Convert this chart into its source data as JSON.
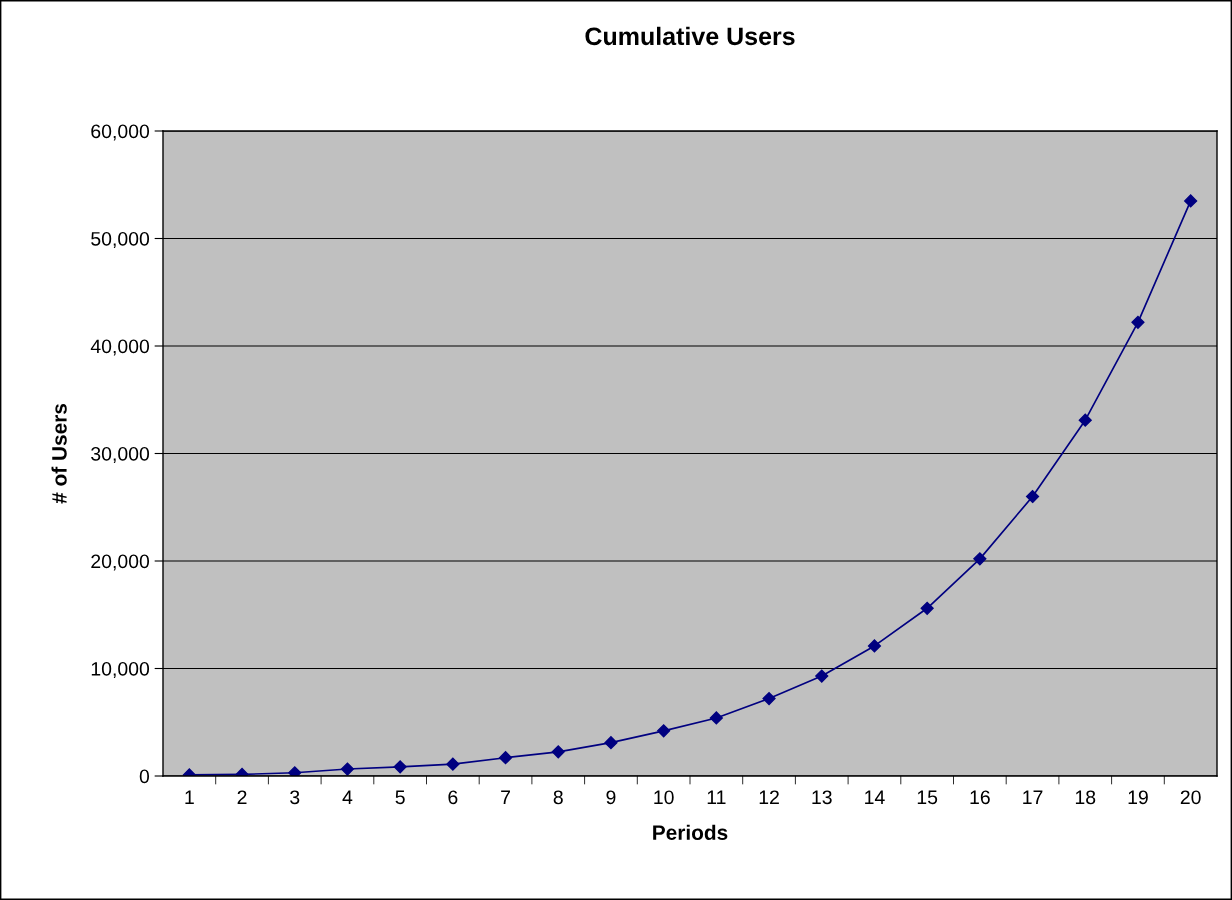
{
  "chart_data": {
    "type": "line",
    "title": "Cumulative Users",
    "xlabel": "Periods",
    "ylabel": "# of Users",
    "categories": [
      "1",
      "2",
      "3",
      "4",
      "5",
      "6",
      "7",
      "8",
      "9",
      "10",
      "11",
      "12",
      "13",
      "14",
      "15",
      "16",
      "17",
      "18",
      "19",
      "20"
    ],
    "series": [
      {
        "color": "#000080",
        "values": [
          100,
          150,
          300,
          650,
          850,
          1100,
          1700,
          2250,
          3100,
          4200,
          5400,
          7200,
          9300,
          12100,
          15600,
          20200,
          26000,
          33100,
          42200,
          53500
        ]
      }
    ],
    "ylim": [
      0,
      60000
    ],
    "yticks": [
      {
        "value": 0,
        "label": "0"
      },
      {
        "value": 10000,
        "label": "10,000"
      },
      {
        "value": 20000,
        "label": "20,000"
      },
      {
        "value": 30000,
        "label": "30,000"
      },
      {
        "value": 40000,
        "label": "40,000"
      },
      {
        "value": 50000,
        "label": "50,000"
      },
      {
        "value": 60000,
        "label": "60,000"
      }
    ],
    "grid": "y",
    "marker": "diamond",
    "line_style": "solid",
    "legend": false
  }
}
